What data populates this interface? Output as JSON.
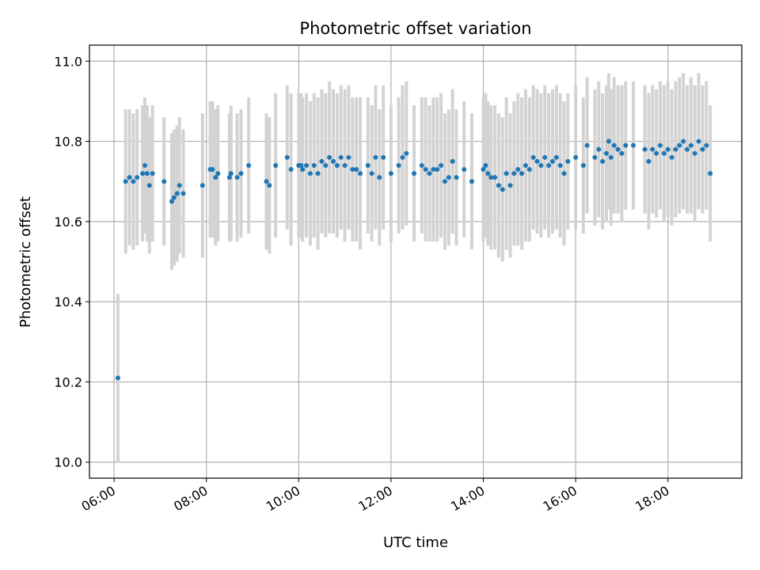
{
  "chart_data": {
    "type": "scatter",
    "title": "Photometric offset variation",
    "xlabel": "UTC time",
    "ylabel": "Photometric offset",
    "x_unit": "UTC hour of day",
    "x_ticks": [
      6,
      8,
      10,
      12,
      14,
      16,
      18
    ],
    "x_tick_labels": [
      "06:00",
      "08:00",
      "10:00",
      "12:00",
      "14:00",
      "16:00",
      "18:00"
    ],
    "xlim": [
      "05:28",
      "19:36"
    ],
    "y_ticks": [
      10.0,
      10.2,
      10.4,
      10.6,
      10.8,
      11.0
    ],
    "y_tick_labels": [
      "10.0",
      "10.2",
      "10.4",
      "10.6",
      "10.8",
      "11.0"
    ],
    "ylim": [
      9.96,
      11.04
    ],
    "grid": true,
    "colors": {
      "points": "#1f77b4",
      "error_bars": "#d3d3d3",
      "grid": "#b0b0b0"
    },
    "series": [
      {
        "x": [
          "06:05",
          "06:15",
          "06:20",
          "06:25",
          "06:30",
          "06:37",
          "06:40",
          "06:43",
          "06:46",
          "06:50",
          "07:05",
          "07:15",
          "07:18",
          "07:22",
          "07:25",
          "07:30",
          "07:55",
          "08:05",
          "08:08",
          "08:12",
          "08:15",
          "08:30",
          "08:32",
          "08:40",
          "08:45",
          "08:55",
          "09:18",
          "09:22",
          "09:30",
          "09:45",
          "09:50",
          "10:00",
          "10:03",
          "10:05",
          "10:10",
          "10:15",
          "10:20",
          "10:25",
          "10:30",
          "10:35",
          "10:40",
          "10:45",
          "10:50",
          "10:55",
          "11:00",
          "11:05",
          "11:10",
          "11:15",
          "11:20",
          "11:30",
          "11:35",
          "11:40",
          "11:45",
          "11:50",
          "12:00",
          "12:10",
          "12:15",
          "12:20",
          "12:30",
          "12:40",
          "12:45",
          "12:50",
          "12:55",
          "13:00",
          "13:05",
          "13:10",
          "13:15",
          "13:20",
          "13:25",
          "13:35",
          "13:45",
          "14:00",
          "14:03",
          "14:06",
          "14:10",
          "14:15",
          "14:20",
          "14:25",
          "14:30",
          "14:35",
          "14:40",
          "14:45",
          "14:50",
          "14:55",
          "15:00",
          "15:05",
          "15:10",
          "15:15",
          "15:20",
          "15:25",
          "15:30",
          "15:35",
          "15:40",
          "15:45",
          "15:50",
          "16:00",
          "16:10",
          "16:15",
          "16:25",
          "16:30",
          "16:35",
          "16:40",
          "16:43",
          "16:46",
          "16:50",
          "16:55",
          "17:00",
          "17:05",
          "17:15",
          "17:30",
          "17:35",
          "17:40",
          "17:45",
          "17:50",
          "17:55",
          "18:00",
          "18:05",
          "18:10",
          "18:15",
          "18:20",
          "18:25",
          "18:30",
          "18:35",
          "18:40",
          "18:45",
          "18:50",
          "18:55"
        ],
        "y": [
          10.21,
          10.7,
          10.71,
          10.7,
          10.71,
          10.72,
          10.74,
          10.72,
          10.69,
          10.72,
          10.7,
          10.65,
          10.66,
          10.67,
          10.69,
          10.67,
          10.69,
          10.73,
          10.73,
          10.71,
          10.72,
          10.71,
          10.72,
          10.71,
          10.72,
          10.74,
          10.7,
          10.69,
          10.74,
          10.76,
          10.73,
          10.74,
          10.74,
          10.73,
          10.74,
          10.72,
          10.74,
          10.72,
          10.75,
          10.74,
          10.76,
          10.75,
          10.74,
          10.76,
          10.74,
          10.76,
          10.73,
          10.73,
          10.72,
          10.74,
          10.72,
          10.76,
          10.71,
          10.76,
          10.72,
          10.74,
          10.76,
          10.77,
          10.72,
          10.74,
          10.73,
          10.72,
          10.73,
          10.73,
          10.74,
          10.7,
          10.71,
          10.75,
          10.71,
          10.73,
          10.7,
          10.73,
          10.74,
          10.72,
          10.71,
          10.71,
          10.69,
          10.68,
          10.72,
          10.69,
          10.72,
          10.73,
          10.72,
          10.74,
          10.73,
          10.76,
          10.75,
          10.74,
          10.76,
          10.74,
          10.75,
          10.76,
          10.74,
          10.72,
          10.75,
          10.76,
          10.74,
          10.79,
          10.76,
          10.78,
          10.75,
          10.77,
          10.8,
          10.76,
          10.79,
          10.78,
          10.77,
          10.79,
          10.79,
          10.78,
          10.75,
          10.78,
          10.77,
          10.79,
          10.77,
          10.78,
          10.76,
          10.78,
          10.79,
          10.8,
          10.78,
          10.79,
          10.77,
          10.8,
          10.78,
          10.79,
          10.72
        ],
        "error": [
          0.21,
          0.18,
          0.17,
          0.17,
          0.17,
          0.17,
          0.17,
          0.17,
          0.17,
          0.17,
          0.16,
          0.17,
          0.17,
          0.17,
          0.17,
          0.16,
          0.18,
          0.17,
          0.17,
          0.17,
          0.17,
          0.16,
          0.17,
          0.16,
          0.16,
          0.17,
          0.17,
          0.17,
          0.18,
          0.18,
          0.19,
          0.18,
          0.18,
          0.18,
          0.18,
          0.18,
          0.18,
          0.19,
          0.18,
          0.18,
          0.19,
          0.18,
          0.18,
          0.18,
          0.19,
          0.18,
          0.18,
          0.18,
          0.19,
          0.17,
          0.17,
          0.18,
          0.17,
          0.18,
          0.17,
          0.17,
          0.18,
          0.18,
          0.17,
          0.17,
          0.18,
          0.17,
          0.18,
          0.18,
          0.18,
          0.17,
          0.17,
          0.18,
          0.17,
          0.17,
          0.17,
          0.18,
          0.18,
          0.18,
          0.18,
          0.18,
          0.18,
          0.18,
          0.19,
          0.18,
          0.18,
          0.19,
          0.19,
          0.19,
          0.18,
          0.18,
          0.18,
          0.18,
          0.18,
          0.18,
          0.18,
          0.18,
          0.18,
          0.18,
          0.17,
          0.18,
          0.17,
          0.17,
          0.17,
          0.17,
          0.17,
          0.17,
          0.17,
          0.17,
          0.17,
          0.16,
          0.17,
          0.16,
          0.16,
          0.16,
          0.17,
          0.16,
          0.16,
          0.16,
          0.17,
          0.17,
          0.17,
          0.17,
          0.17,
          0.17,
          0.16,
          0.17,
          0.17,
          0.17,
          0.16,
          0.16,
          0.17
        ]
      }
    ]
  }
}
